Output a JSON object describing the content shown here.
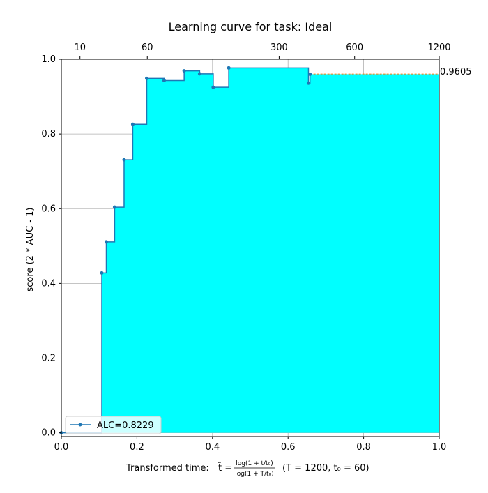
{
  "chart_data": {
    "type": "area",
    "title": "Learning curve for task: Ideal",
    "xlabel_prefix": "Transformed time: ",
    "xlabel_tilde": "t̃ =",
    "xlabel_num": "log(1 + t/t₀)",
    "xlabel_den": "log(1 + T/t₀)",
    "xlabel_suffix": "(T = 1200,  t₀ = 60)",
    "ylabel": "score (2 * AUC - 1)",
    "xlim": [
      0,
      1
    ],
    "ylim": [
      -0.01,
      1.0
    ],
    "grid": true,
    "xticks": [
      {
        "v": 0.0,
        "label": "0.0"
      },
      {
        "v": 0.2,
        "label": "0.2"
      },
      {
        "v": 0.4,
        "label": "0.4"
      },
      {
        "v": 0.6,
        "label": "0.6"
      },
      {
        "v": 0.8,
        "label": "0.8"
      },
      {
        "v": 1.0,
        "label": "1.0"
      }
    ],
    "yticks": [
      {
        "v": 0.0,
        "label": "0.0"
      },
      {
        "v": 0.2,
        "label": "0.2"
      },
      {
        "v": 0.4,
        "label": "0.4"
      },
      {
        "v": 0.6,
        "label": "0.6"
      },
      {
        "v": 0.8,
        "label": "0.8"
      },
      {
        "v": 1.0,
        "label": "1.0"
      }
    ],
    "top_ticks": [
      {
        "v": 0.0493,
        "label": "10"
      },
      {
        "v": 0.2274,
        "label": "60"
      },
      {
        "v": 0.5764,
        "label": "300"
      },
      {
        "v": 0.7762,
        "label": "600"
      },
      {
        "v": 1.0,
        "label": "1200"
      }
    ],
    "series": [
      {
        "name": "ALC=0.8229",
        "x": [
          0.0,
          0.107,
          0.119,
          0.141,
          0.166,
          0.189,
          0.226,
          0.272,
          0.325,
          0.366,
          0.402,
          0.443,
          0.654,
          0.658
        ],
        "y": [
          0.0,
          0.428,
          0.511,
          0.604,
          0.731,
          0.826,
          0.949,
          0.943,
          0.969,
          0.961,
          0.925,
          0.977,
          0.936,
          0.96
        ]
      }
    ],
    "final_value": 0.9605,
    "final_label": "0.9605",
    "legend_position": "lower-left",
    "colors": {
      "line": "#1f77b4",
      "fill": "#00ffff",
      "dashed": "#ff7f0e",
      "grid": "#b0b0b0"
    }
  }
}
